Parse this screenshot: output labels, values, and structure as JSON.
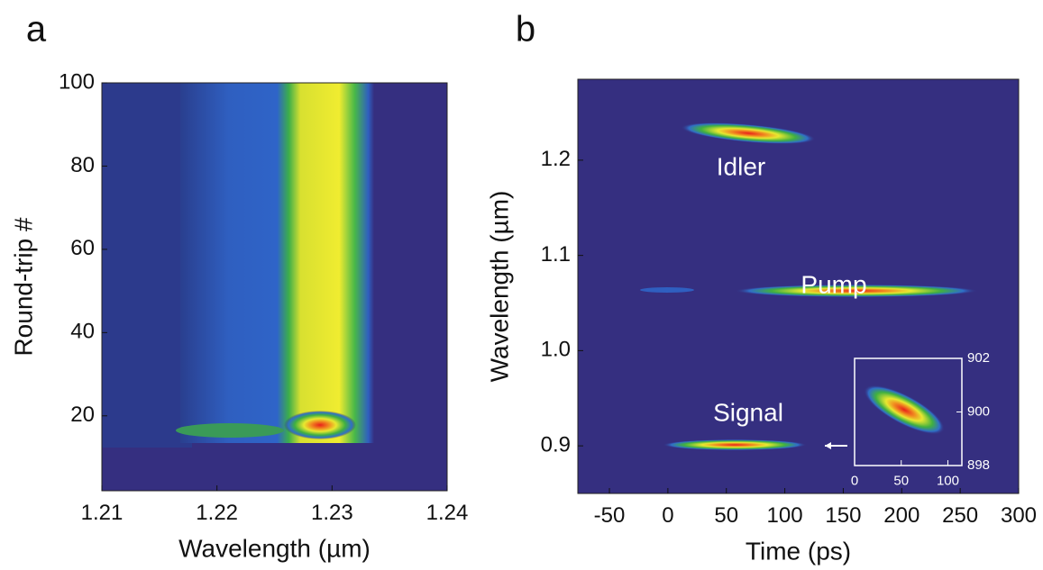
{
  "chart_data": [
    {
      "type": "heatmap",
      "panel_label": "a",
      "x_label": "Wavelength (µm)",
      "y_label": "Round-trip #",
      "xlim": [
        1.21,
        1.24
      ],
      "xticks": [
        1.21,
        1.22,
        1.23,
        1.24
      ],
      "ylim": [
        2,
        100
      ],
      "yticks": [
        20,
        40,
        60,
        80,
        100
      ]
    },
    {
      "type": "heatmap",
      "panel_label": "b",
      "x_label": "Time (ps)",
      "y_label": "Wavelength (µm)",
      "xlim": [
        -77,
        300
      ],
      "xticks": [
        -50,
        0,
        50,
        100,
        150,
        200,
        250,
        300
      ],
      "ylim": [
        0.85,
        1.285
      ],
      "yticks": [
        0.9,
        {
          "value": 1,
          "label": "1.0"
        },
        1.1,
        1.2
      ],
      "annotations": [
        "Idler",
        "Pump",
        "Signal"
      ]
    },
    {
      "type": "heatmap",
      "xlim": [
        0,
        115
      ],
      "xticks": [
        0,
        50,
        100
      ],
      "ylim": [
        898,
        902
      ],
      "yticks": [
        898,
        900,
        902
      ]
    }
  ]
}
